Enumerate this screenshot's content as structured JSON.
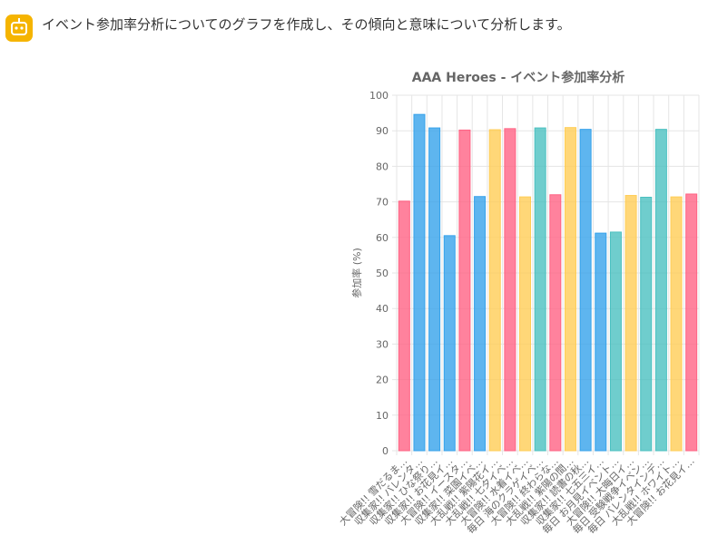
{
  "message": "イベント参加率分析についてのグラフを作成し、その傾向と意味について分析します。",
  "chart_data": {
    "type": "bar",
    "title": "AAA Heroes - イベント参加率分析",
    "y_label": "参加率 (%)",
    "categories": [
      "大冒険!! 雪だるま…",
      "収集家!! バレンタ…",
      "収集家!! ひな祭り…",
      "収集家!! お花見イ…",
      "大冒険!! イースタ…",
      "収集家!! 菜園イベ…",
      "大乱戦!! 紫陽花イ…",
      "大乱戦!! 七夕イベ…",
      "大冒険!! 水着イベ…",
      "毎日 海のクラゲイベ…",
      "大冒険!! 終わらな…",
      "大乱戦!! 紫陽の間…",
      "収集家!! 読書の秋…",
      "収集家!! 七五三イ…",
      "毎日 お月見イベント…",
      "大冒険!! 大晦日イ…",
      "毎日 受験戦争イベン…",
      "毎日 バレンタインデ…",
      "大乱戦!! ホワイト…",
      "大冒険!! お花見イ…"
    ],
    "values": [
      70.2,
      94.6,
      90.8,
      60.5,
      90.2,
      71.5,
      90.3,
      90.6,
      71.4,
      90.8,
      72.0,
      90.9,
      90.4,
      61.2,
      61.5,
      71.8,
      71.3,
      90.4,
      71.4,
      72.2
    ],
    "colors": [
      "#ff6384",
      "#36a2eb",
      "#36a2eb",
      "#36a2eb",
      "#ff6384",
      "#36a2eb",
      "#ffcd56",
      "#ff6384",
      "#ffcd56",
      "#4bc0c0",
      "#ff6384",
      "#ffcd56",
      "#36a2eb",
      "#36a2eb",
      "#4bc0c0",
      "#ffcd56",
      "#4bc0c0",
      "#4bc0c0",
      "#ffcd56",
      "#ff6384"
    ],
    "ylim": [
      0,
      100
    ],
    "yticks": [
      0,
      10,
      20,
      30,
      40,
      50,
      60,
      70,
      80,
      90,
      100
    ],
    "grid": true
  }
}
